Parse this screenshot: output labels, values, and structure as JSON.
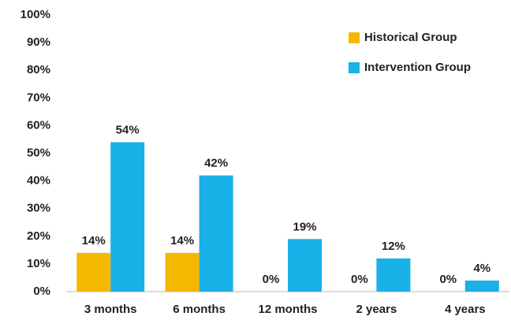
{
  "chart_data": {
    "type": "bar",
    "categories": [
      "3 months",
      "6 months",
      "12 months",
      "2 years",
      "4 years"
    ],
    "series": [
      {
        "name": "Historical Group",
        "color": "#f5b800",
        "values": [
          14,
          14,
          0,
          0,
          0
        ],
        "value_labels": [
          "14%",
          "14%",
          "0%",
          "0%",
          "0%"
        ]
      },
      {
        "name": "Intervention Group",
        "color": "#1ab0e8",
        "values": [
          54,
          42,
          19,
          12,
          4
        ],
        "value_labels": [
          "54%",
          "42%",
          "19%",
          "12%",
          "4%"
        ]
      }
    ],
    "ylim": [
      0,
      100
    ],
    "yticks": [
      {
        "value": 0,
        "label": "0%"
      },
      {
        "value": 10,
        "label": "10%"
      },
      {
        "value": 20,
        "label": "20%"
      },
      {
        "value": 30,
        "label": "30%"
      },
      {
        "value": 40,
        "label": "40%"
      },
      {
        "value": 50,
        "label": "50%"
      },
      {
        "value": 60,
        "label": "60%"
      },
      {
        "value": 70,
        "label": "70%"
      },
      {
        "value": 80,
        "label": "80%"
      },
      {
        "value": 90,
        "label": "90%"
      },
      {
        "value": 100,
        "label": "100%"
      }
    ],
    "grid": false,
    "legend": "upper right"
  }
}
